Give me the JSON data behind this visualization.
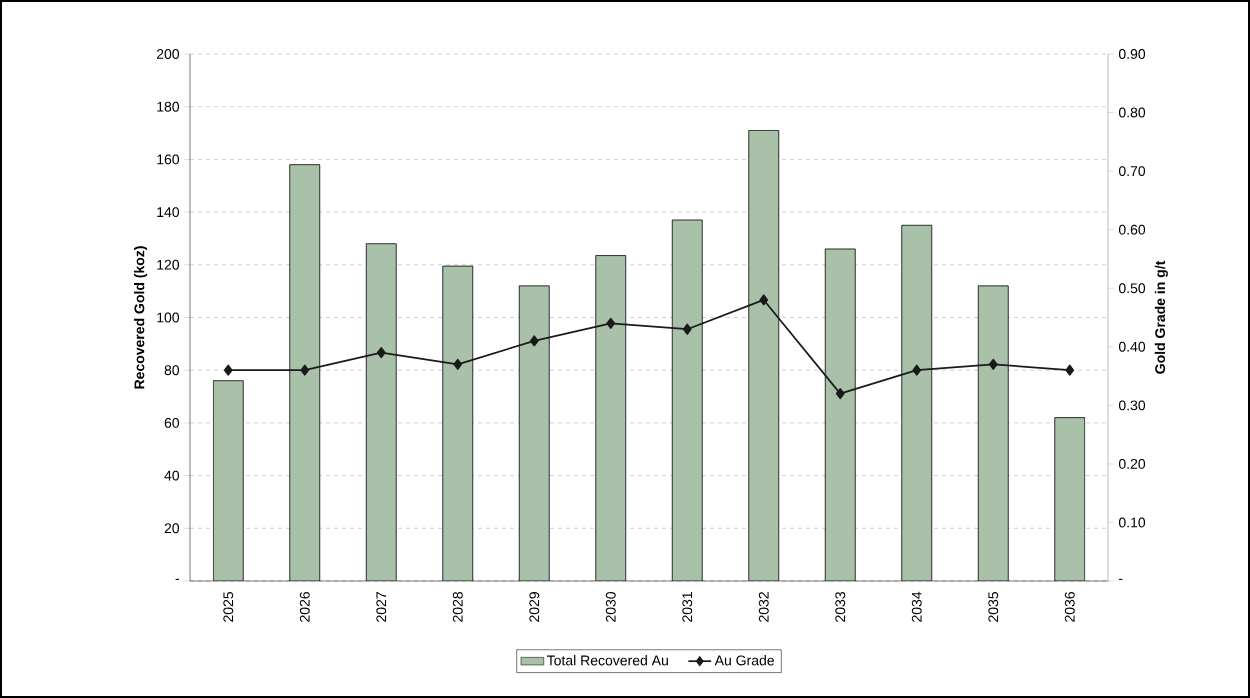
{
  "chart_data": {
    "type": "bar",
    "ylabel": "Recovered Gold (koz)",
    "y2label": "Gold Grade in g/t",
    "categories": [
      "2025",
      "2026",
      "2027",
      "2028",
      "2029",
      "2030",
      "2031",
      "2032",
      "2033",
      "2034",
      "2035",
      "2036"
    ],
    "series": [
      {
        "name": "Total Recovered Au",
        "color": "#a9c1a9",
        "values": [
          76,
          158,
          128,
          119.5,
          112,
          123.5,
          137,
          171,
          126,
          135,
          112,
          62
        ]
      },
      {
        "name": "Au Grade",
        "type": "line",
        "axis": "y2",
        "color": "#1a1a1a",
        "marker": "diamond",
        "line_style": "solid",
        "values": [
          0.36,
          0.36,
          0.39,
          0.37,
          0.41,
          0.44,
          0.43,
          0.48,
          0.32,
          0.36,
          0.37,
          0.36
        ]
      }
    ],
    "ylim": [
      0,
      200
    ],
    "yticks": [
      {
        "value": 0,
        "label": "-"
      },
      20,
      40,
      60,
      80,
      100,
      120,
      140,
      160,
      180,
      200
    ],
    "y2lim": [
      0,
      0.9
    ],
    "y2ticks": [
      {
        "value": 0,
        "label": "-"
      },
      {
        "value": 0.1,
        "label": "0.10"
      },
      {
        "value": 0.2,
        "label": "0.20"
      },
      {
        "value": 0.3,
        "label": "0.30"
      },
      {
        "value": 0.4,
        "label": "0.40"
      },
      {
        "value": 0.5,
        "label": "0.50"
      },
      {
        "value": 0.6,
        "label": "0.60"
      },
      {
        "value": 0.7,
        "label": "0.70"
      },
      {
        "value": 0.8,
        "label": "0.80"
      },
      {
        "value": 0.9,
        "label": "0.90"
      }
    ],
    "grid": "y",
    "legend": "bottom"
  }
}
